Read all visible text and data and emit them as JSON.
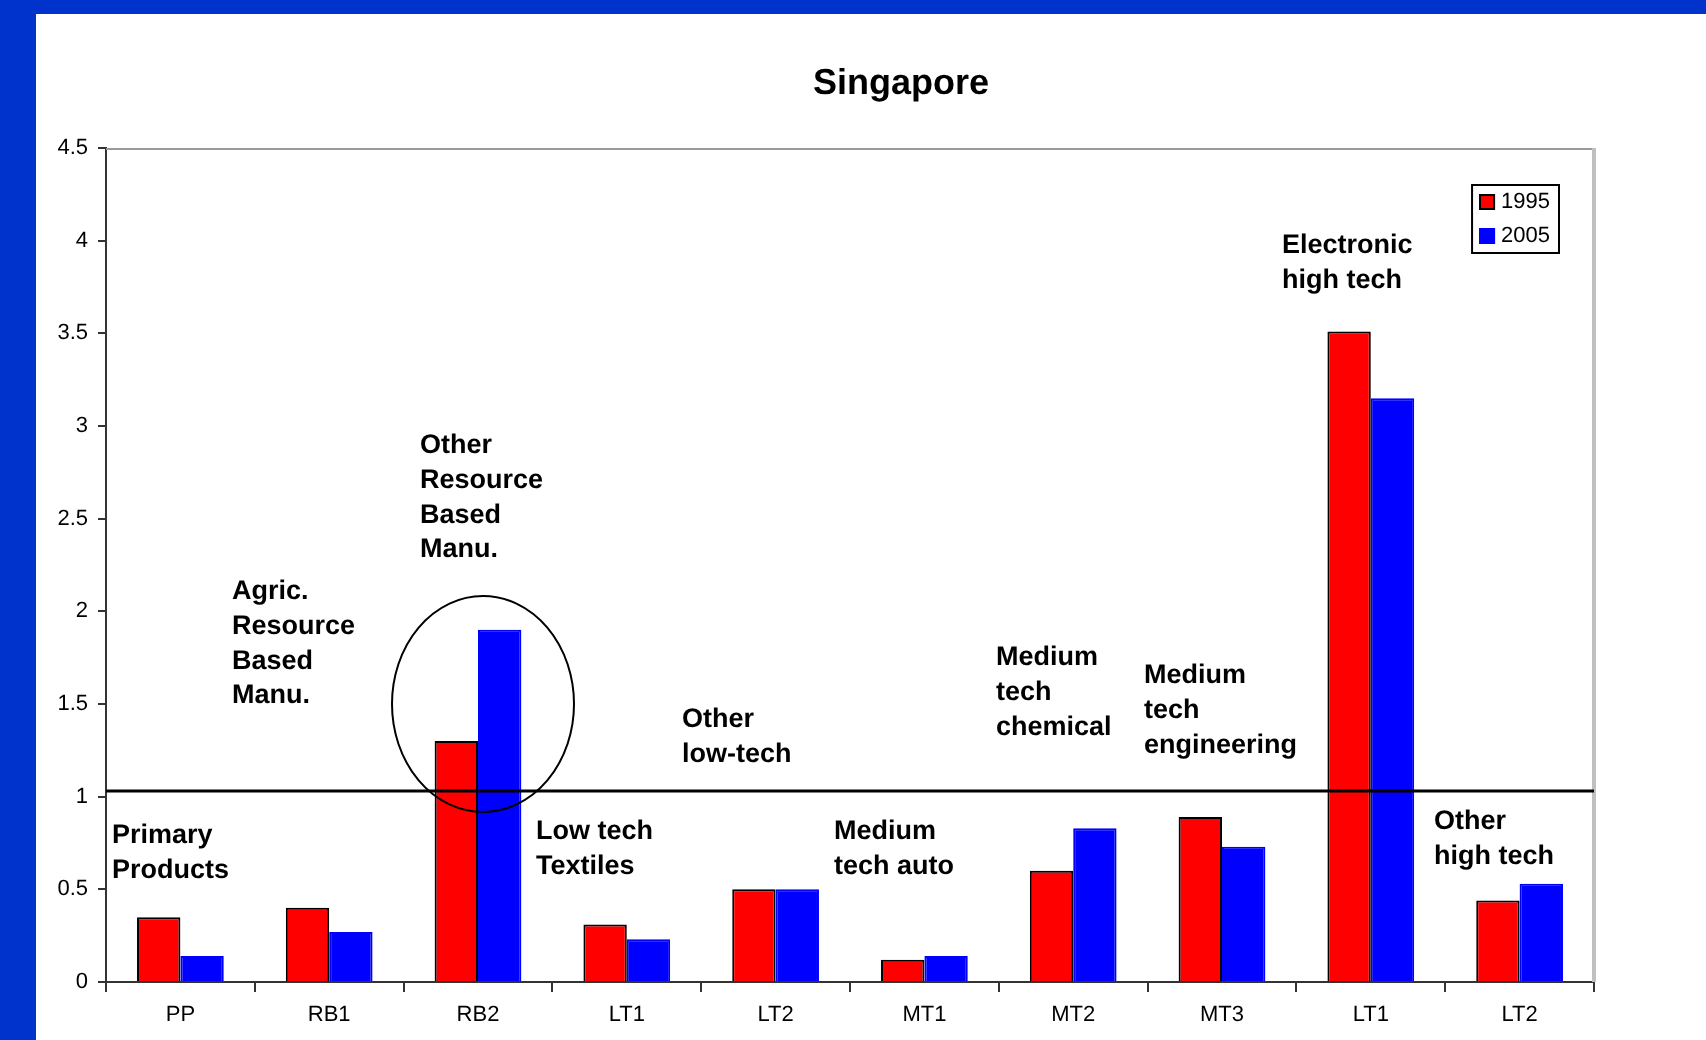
{
  "chart_data": {
    "type": "bar",
    "title": "Singapore",
    "categories": [
      "PP",
      "RB1",
      "RB2",
      "LT1",
      "LT2",
      "MT1",
      "MT2",
      "MT3",
      "LT1",
      "LT2"
    ],
    "series": [
      {
        "name": "1995",
        "color": "#ff0000",
        "values": [
          0.35,
          0.4,
          1.3,
          0.31,
          0.5,
          0.12,
          0.6,
          0.89,
          3.51,
          0.44
        ]
      },
      {
        "name": "2005",
        "color": "#0000ff",
        "values": [
          0.14,
          0.27,
          1.9,
          0.23,
          0.5,
          0.14,
          0.83,
          0.73,
          3.15,
          0.53
        ]
      }
    ],
    "ylim": [
      0,
      4.5
    ],
    "yticks": [
      0,
      0.5,
      1,
      1.5,
      2,
      2.5,
      3,
      3.5,
      4,
      4.5
    ],
    "grid": false,
    "legend": "top right",
    "ref_lines": [
      {
        "axis": "y",
        "value": 1.03,
        "color": "#000000"
      }
    ],
    "annotations": [
      "Primary\nProducts",
      "Agric.\nResource\nBased\nManu.",
      "Other\nResource\nBased\nManu.",
      "Low tech\nTextiles",
      "Other\nlow-tech",
      "Medium\ntech auto",
      "Medium\ntech\nchemical",
      "Medium\ntech\nengineering",
      "Electronic\nhigh tech",
      "Other\nhigh tech"
    ]
  }
}
